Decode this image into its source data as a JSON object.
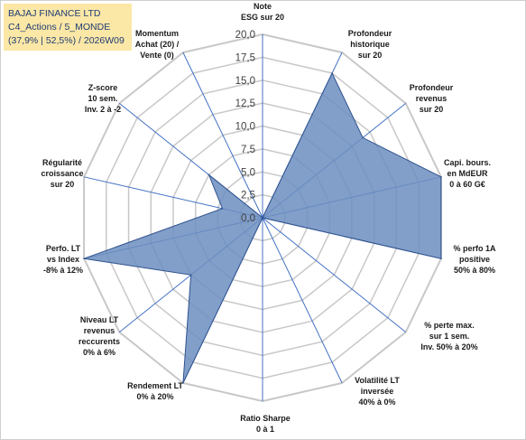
{
  "header": {
    "company": "BAJAJ FINANCE LTD",
    "category": "C4_Actions / 5_MONDE",
    "stats": "(37,9% | 52,5%) / 2026W09"
  },
  "chart_data": {
    "type": "radar",
    "rmax": 20,
    "grid_step": 2.5,
    "tick_labels": [
      "0,0",
      "2,5",
      "5,0",
      "7,5",
      "10,0",
      "12,5",
      "15,0",
      "17,5",
      "20,0"
    ],
    "axes": [
      {
        "label": [
          "Note",
          "ESG sur 20"
        ],
        "value": 0
      },
      {
        "label": [
          "Profondeur",
          "historique",
          "sur 20"
        ],
        "value": 17.5
      },
      {
        "label": [
          "Profondeur",
          "revenus",
          "sur 20"
        ],
        "value": 14.0
      },
      {
        "label": [
          "Capi. bours.",
          "en MdEUR",
          "0 à 60 G€"
        ],
        "value": 20.0
      },
      {
        "label": [
          "% perfo 1A",
          "positive",
          "50% à 80%"
        ],
        "value": 20.0
      },
      {
        "label": [
          "% perte max.",
          "sur 1 sem.",
          "Inv. 50% à 20%"
        ],
        "value": 0
      },
      {
        "label": [
          "Volatilité LT",
          "inversée",
          "40% à 0%"
        ],
        "value": 0
      },
      {
        "label": [
          "Ratio Sharpe",
          "0 à 1"
        ],
        "value": 0
      },
      {
        "label": [
          "Rendement LT",
          "0% à 20%"
        ],
        "value": 20.0
      },
      {
        "label": [
          "Niveau LT",
          "revenus",
          "reccurents",
          "0% à 6%"
        ],
        "value": 10.0
      },
      {
        "label": [
          "Perfo. LT",
          "vs Index",
          "-8% à 12%"
        ],
        "value": 20.0
      },
      {
        "label": [
          "Régularité",
          "croissance",
          "sur 20"
        ],
        "value": 4.5
      },
      {
        "label": [
          "Z-score",
          "10 sem.",
          "Inv. 2 à -2"
        ],
        "value": 7.5
      },
      {
        "label": [
          "Momentum",
          "Achat (20) /",
          "Vente (0)"
        ],
        "value": 0
      }
    ],
    "colors": {
      "fill": "#6c8ebf",
      "stroke": "#2f528f",
      "axis": "#4472c4",
      "grid": "#c8c8c8"
    }
  }
}
